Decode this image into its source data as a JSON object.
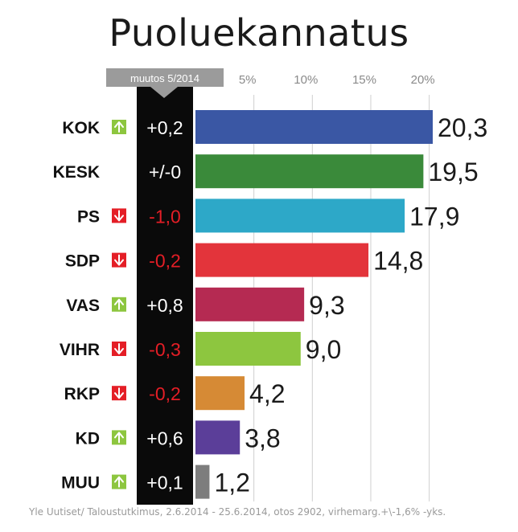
{
  "title": "Puoluekannatus",
  "change_header": "muutos 5/2014",
  "source": "Yle Uutiset/ Taloustutkimus, 2.6.2014 - 25.6.2014, otos 2902, virhemarg.+\\-1,6% -yks.",
  "colors": {
    "up": "#8dc63f",
    "down": "#e41e26",
    "change_column": "#0a0a0a",
    "change_up_text": "#ffffff",
    "change_down_text": "#e41e26",
    "grid": "#cfcfcf",
    "header_box": "#9b9b9b"
  },
  "chart_data": {
    "type": "bar",
    "orientation": "horizontal",
    "title": "Puoluekannatus",
    "xlim": [
      0,
      20.3
    ],
    "x_ticks": [
      {
        "value": 5,
        "label": "5%"
      },
      {
        "value": 10,
        "label": "10%"
      },
      {
        "value": 15,
        "label": "15%"
      },
      {
        "value": 20,
        "label": "20%"
      }
    ],
    "grid": true,
    "categories": [
      "KOK",
      "KESK",
      "PS",
      "SDP",
      "VAS",
      "VIHR",
      "RKP",
      "KD",
      "MUU"
    ],
    "values": [
      20.3,
      19.5,
      17.9,
      14.8,
      9.3,
      9.0,
      4.2,
      3.8,
      1.2
    ],
    "value_labels": [
      "20,3",
      "19,5",
      "17,9",
      "14,8",
      "9,3",
      "9,0",
      "4,2",
      "3,8",
      "1,2"
    ],
    "bar_colors": [
      "#3a57a4",
      "#3a8a3a",
      "#2da8c8",
      "#e3343b",
      "#b52a52",
      "#8dc63f",
      "#d68a35",
      "#5b3e99",
      "#7d7d7d"
    ],
    "changes": [
      "+0,2",
      "+/-0",
      "-1,0",
      "-0,2",
      "+0,8",
      "-0,3",
      "-0,2",
      "+0,6",
      "+0,1"
    ],
    "change_direction": [
      "up",
      "none",
      "down",
      "down",
      "up",
      "down",
      "down",
      "up",
      "up"
    ]
  }
}
